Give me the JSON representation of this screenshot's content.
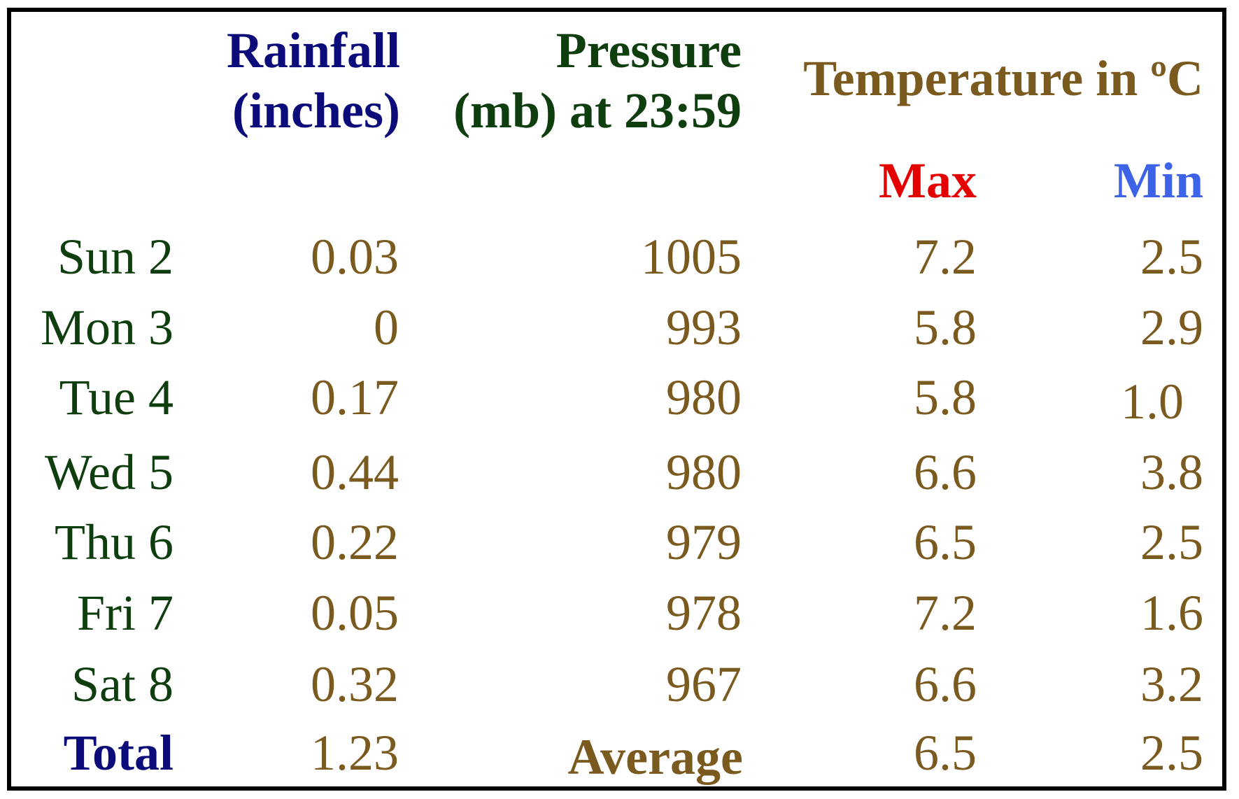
{
  "colors": {
    "dark_blue": "#0b0b7a",
    "dark_green": "#0e3d0e",
    "brown": "#7a5a1e",
    "red": "#e50000",
    "light_blue": "#3d63e8",
    "border": "#000000"
  },
  "headers": {
    "rainfall_line1": "Rainfall",
    "rainfall_line2": "(inches)",
    "pressure_line1": "Pressure",
    "pressure_line2": "(mb) at 23:59",
    "temperature": "Temperature in ºC",
    "max": "Max",
    "min": "Min"
  },
  "rows": [
    {
      "day": "Sun 2",
      "rainfall": "0.03",
      "pressure": "1005",
      "max": "7.2",
      "min": "2.5"
    },
    {
      "day": "Mon 3",
      "rainfall": "0",
      "pressure": "993",
      "max": "5.8",
      "min": "2.9"
    },
    {
      "day": "Tue 4",
      "rainfall": "0.17",
      "pressure": "980",
      "max": "5.8",
      "min": "1.0"
    },
    {
      "day": "Wed 5",
      "rainfall": "0.44",
      "pressure": "980",
      "max": "6.6",
      "min": "3.8"
    },
    {
      "day": "Thu 6",
      "rainfall": "0.22",
      "pressure": "979",
      "max": "6.5",
      "min": "2.5"
    },
    {
      "day": "Fri 7",
      "rainfall": "0.05",
      "pressure": "978",
      "max": "7.2",
      "min": "1.6"
    },
    {
      "day": "Sat 8",
      "rainfall": "0.32",
      "pressure": "967",
      "max": "6.6",
      "min": "3.2"
    }
  ],
  "footer": {
    "total_label": "Total",
    "total_rainfall": "1.23",
    "average_label": "Average",
    "average_max": "6.5",
    "average_min": "2.5"
  }
}
